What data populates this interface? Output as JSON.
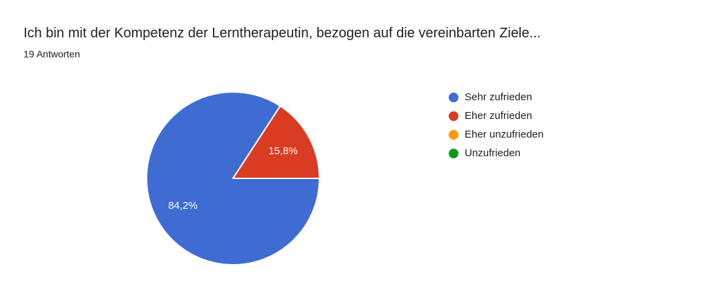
{
  "chart_data": {
    "type": "pie",
    "title": "Ich bin mit der Kompetenz der Lerntherapeutin, bezogen auf die vereinbarten Ziele...",
    "subtitle": "19 Antworten",
    "legend_position": "right",
    "start_angle_deg": 0,
    "direction": "clockwise",
    "label_text_color": "#ffffff",
    "slice_border_color": "#ffffff",
    "slices": [
      {
        "label": "Sehr zufrieden",
        "pct": 84.2,
        "pct_label": "84,2%",
        "color": "#3E6CD3"
      },
      {
        "label": "Eher zufrieden",
        "pct": 15.8,
        "pct_label": "15,8%",
        "color": "#D93B23"
      },
      {
        "label": "Eher unzufrieden",
        "pct": 0,
        "pct_label": "",
        "color": "#FF9900"
      },
      {
        "label": "Unzufrieden",
        "pct": 0,
        "pct_label": "",
        "color": "#109618"
      }
    ]
  }
}
